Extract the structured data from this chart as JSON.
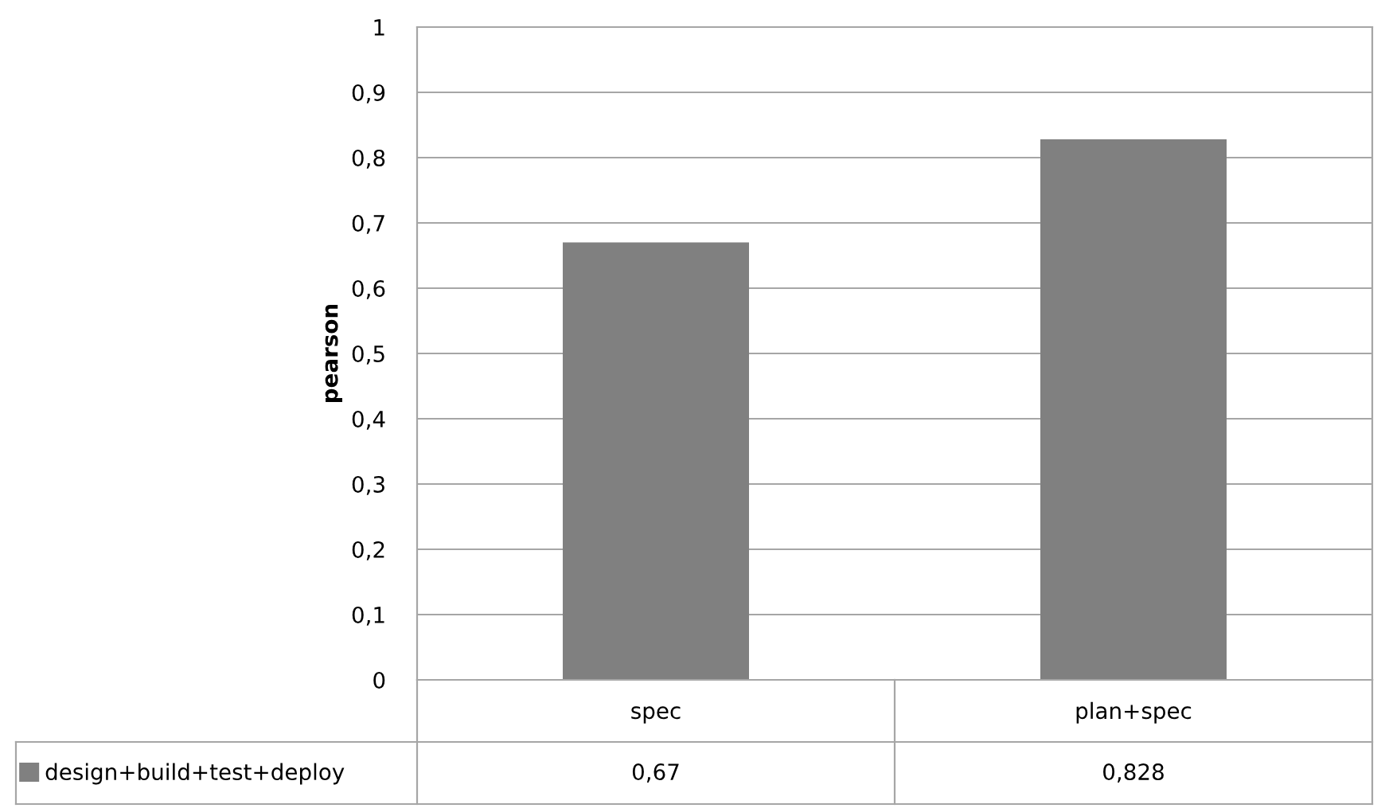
{
  "chart_data": {
    "type": "bar",
    "ylabel": "pearson",
    "categories": [
      "spec",
      "plan+spec"
    ],
    "series": [
      {
        "name": "design+build+test+deploy",
        "color": "#808080",
        "values": [
          0.67,
          0.828
        ],
        "value_labels": [
          "0,67",
          "0,828"
        ]
      }
    ],
    "ylim": [
      0,
      1
    ],
    "yticks": [
      0,
      {
        "value": 0.1,
        "label": "0,1"
      },
      {
        "value": 0.2,
        "label": "0,2"
      },
      {
        "value": 0.3,
        "label": "0,3"
      },
      {
        "value": 0.4,
        "label": "0,4"
      },
      {
        "value": 0.5,
        "label": "0,5"
      },
      {
        "value": 0.6,
        "label": "0,6"
      },
      {
        "value": 0.7,
        "label": "0,7"
      },
      {
        "value": 0.8,
        "label": "0,8"
      },
      {
        "value": 0.9,
        "label": "0,9"
      },
      1
    ],
    "grid": "y",
    "legend": "bottom"
  }
}
